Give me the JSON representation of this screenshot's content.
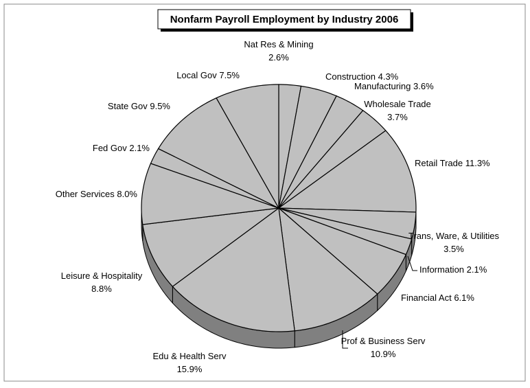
{
  "chart_data": {
    "type": "pie",
    "title": "Nonfarm Payroll Employment by Industry 2006",
    "categories": [
      "Nat Res & Mining",
      "Construction",
      "Manufacturing",
      "Wholesale Trade",
      "Retail Trade",
      "Trans, Ware, & Utilities",
      "Information",
      "Financial Act",
      "Prof & Business Serv",
      "Edu & Health Serv",
      "Leisure & Hospitality",
      "Other Services",
      "Fed Gov",
      "State Gov",
      "Local Gov"
    ],
    "values": [
      2.6,
      4.3,
      3.6,
      3.7,
      11.3,
      3.5,
      2.1,
      6.1,
      10.9,
      15.9,
      8.8,
      8.0,
      2.1,
      9.5,
      7.5
    ],
    "value_labels": [
      "2.6%",
      "4.3%",
      "3.6%",
      "3.7%",
      "11.3%",
      "3.5%",
      "2.1%",
      "6.1%",
      "10.9%",
      "15.9%",
      "8.8%",
      "8.0%",
      "2.1%",
      "9.5%",
      "7.5%"
    ],
    "color": "#c0c0c0",
    "side_color": "#808080"
  }
}
